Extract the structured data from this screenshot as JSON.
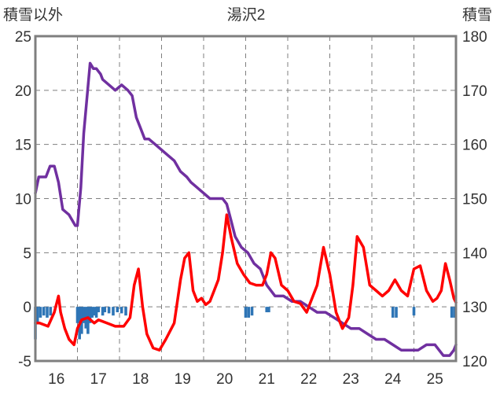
{
  "chart_data": {
    "type": "line",
    "title": "湯沢2",
    "left_axis_label": "積雪以外",
    "right_axis_label": "積雪",
    "ylim_left": [
      -5,
      25
    ],
    "yticks_left": [
      -5,
      0,
      5,
      10,
      15,
      20,
      25
    ],
    "ylim_right": [
      120,
      180
    ],
    "yticks_right": [
      120,
      130,
      140,
      150,
      160,
      170,
      180
    ],
    "xlim": [
      15.5,
      25.5
    ],
    "xtick_labels": [
      "16",
      "17",
      "18",
      "19",
      "20",
      "21",
      "22",
      "23",
      "24",
      "25"
    ],
    "grid": true,
    "series": [
      {
        "axis": "right",
        "color": "#7030a0",
        "x": [
          15.5,
          15.58,
          15.75,
          15.85,
          15.95,
          16.05,
          16.15,
          16.3,
          16.45,
          16.5,
          16.58,
          16.65,
          16.8,
          16.88,
          16.95,
          17.05,
          17.1,
          17.25,
          17.4,
          17.55,
          17.7,
          17.8,
          17.9,
          18.0,
          18.1,
          18.2,
          18.35,
          18.5,
          18.65,
          18.8,
          18.95,
          19.1,
          19.2,
          19.35,
          19.5,
          19.65,
          19.8,
          19.95,
          20.05,
          20.15,
          20.25,
          20.4,
          20.55,
          20.7,
          20.85,
          21.0,
          21.2,
          21.4,
          21.6,
          21.8,
          22.0,
          22.2,
          22.4,
          22.6,
          22.8,
          23.0,
          23.2,
          23.4,
          23.6,
          23.8,
          24.0,
          24.2,
          24.4,
          24.6,
          24.8,
          25.0,
          25.2,
          25.35,
          25.45,
          25.5
        ],
        "y": [
          151,
          154,
          154,
          156,
          156,
          153,
          148,
          147,
          145,
          145,
          152,
          162,
          175,
          174,
          174,
          173,
          172,
          171,
          170,
          171,
          170,
          169,
          165,
          163,
          161,
          161,
          160,
          159,
          158,
          157,
          155,
          154,
          153,
          152,
          151,
          150,
          150,
          150,
          149,
          146,
          143,
          141,
          140,
          138,
          137,
          134,
          132,
          132,
          131,
          131,
          130,
          129,
          129,
          128,
          127,
          126,
          126,
          125,
          124,
          124,
          123,
          122,
          122,
          122,
          123,
          123,
          121,
          121,
          122,
          123
        ]
      },
      {
        "axis": "left",
        "color": "#ff0000",
        "x": [
          15.5,
          15.6,
          15.8,
          15.95,
          16.05,
          16.1,
          16.2,
          16.3,
          16.42,
          16.5,
          16.6,
          16.75,
          16.9,
          17.0,
          17.2,
          17.4,
          17.6,
          17.75,
          17.85,
          17.95,
          18.05,
          18.15,
          18.3,
          18.45,
          18.6,
          18.8,
          18.95,
          19.05,
          19.15,
          19.25,
          19.35,
          19.45,
          19.55,
          19.65,
          19.75,
          19.85,
          19.95,
          20.05,
          20.15,
          20.3,
          20.45,
          20.6,
          20.75,
          20.9,
          21.0,
          21.1,
          21.2,
          21.35,
          21.5,
          21.65,
          21.8,
          21.95,
          22.05,
          22.2,
          22.35,
          22.5,
          22.65,
          22.8,
          22.95,
          23.05,
          23.15,
          23.3,
          23.45,
          23.6,
          23.75,
          23.9,
          24.05,
          24.2,
          24.35,
          24.5,
          24.65,
          24.8,
          24.95,
          25.05,
          25.15,
          25.25,
          25.35,
          25.45,
          25.5
        ],
        "y": [
          -1.5,
          -1.5,
          -1.8,
          -0.5,
          1.0,
          -0.5,
          -2.0,
          -3.0,
          -3.5,
          -2.0,
          -1.2,
          -1.0,
          -1.5,
          -1.2,
          -1.5,
          -1.8,
          -1.8,
          -1.0,
          2.0,
          3.5,
          0.0,
          -2.5,
          -3.8,
          -4.0,
          -3.0,
          -1.5,
          2.5,
          4.5,
          5.0,
          1.5,
          0.5,
          0.8,
          0.2,
          0.5,
          1.5,
          2.5,
          5.0,
          8.5,
          6.5,
          4.0,
          3.0,
          2.2,
          2.0,
          2.0,
          3.0,
          5.0,
          4.5,
          2.0,
          1.5,
          0.5,
          0.3,
          -0.5,
          0.5,
          2.0,
          5.5,
          3.0,
          -0.5,
          -2.0,
          -1.0,
          2.0,
          6.5,
          5.5,
          2.0,
          1.5,
          1.0,
          1.5,
          2.5,
          1.5,
          1.0,
          3.5,
          3.8,
          1.5,
          0.5,
          0.8,
          1.5,
          4.0,
          2.5,
          0.8,
          0.4
        ]
      },
      {
        "axis": "left",
        "type": "bar",
        "color": "#2e75b6",
        "x": [
          15.5,
          15.55,
          15.62,
          15.7,
          15.78,
          15.86,
          16.5,
          16.55,
          16.6,
          16.65,
          16.7,
          16.75,
          16.8,
          16.85,
          16.9,
          16.95,
          17.0,
          17.1,
          17.15,
          17.25,
          17.35,
          17.45,
          17.55,
          17.65,
          20.5,
          20.57,
          20.65,
          21.0,
          21.05,
          24.0,
          24.08,
          24.5,
          25.4,
          25.47
        ],
        "values": [
          -3.0,
          -1.5,
          -1.0,
          -0.8,
          -1.0,
          -0.8,
          -1.5,
          -3.0,
          -2.5,
          -1.5,
          -2.0,
          -2.5,
          -1.5,
          -1.0,
          -0.8,
          -1.0,
          -0.5,
          -0.8,
          -0.5,
          -0.6,
          -0.8,
          -0.5,
          -0.6,
          -0.8,
          -1.0,
          -1.0,
          -0.8,
          -0.5,
          -0.5,
          -1.0,
          -1.0,
          -0.8,
          -1.0,
          -1.0
        ]
      }
    ]
  }
}
